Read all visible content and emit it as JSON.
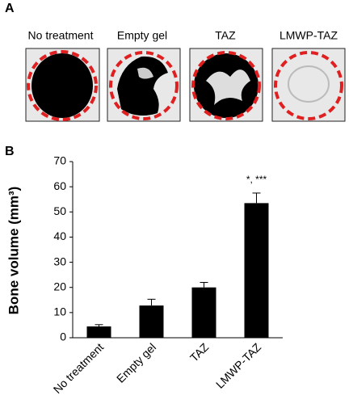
{
  "panel_a": {
    "label": "A",
    "images": [
      {
        "label": "No treatment"
      },
      {
        "label": "Empty gel"
      },
      {
        "label": "TAZ"
      },
      {
        "label": "LMWP-TAZ"
      }
    ]
  },
  "chart_data": {
    "type": "bar",
    "panel_label": "B",
    "y_label": "Bone volume (mm³)",
    "categories": [
      "No treatment",
      "Empty gel",
      "TAZ",
      "LMWP-TAZ"
    ],
    "values": [
      4.5,
      12.8,
      20,
      53.5
    ],
    "errors": [
      0.7,
      2.5,
      2,
      4
    ],
    "color": "#000000",
    "annotation": "*, ***",
    "ylim": [
      0,
      70
    ],
    "yticks": [
      0,
      10,
      20,
      30,
      40,
      50,
      60,
      70
    ]
  }
}
